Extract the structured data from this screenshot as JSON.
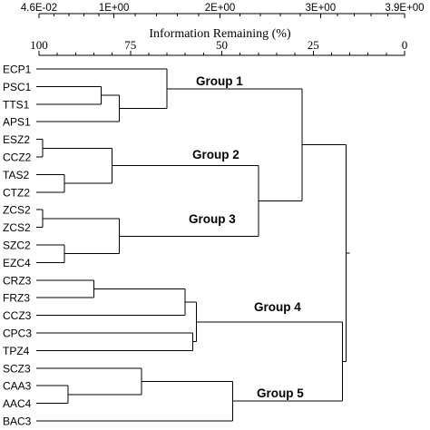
{
  "axis": {
    "top_ticks": [
      "4.6E-02",
      "1E+00",
      "2E+00",
      "3E+00",
      "3.9E+00"
    ],
    "title": "Information Remaining (%)",
    "bottom_ticks": [
      100,
      75,
      50,
      25,
      0
    ]
  },
  "leaves": [
    "ECP1",
    "PSC1",
    "TTS1",
    "APS1",
    "ESZ2",
    "CCZ2",
    "TAS2",
    "CTZ2",
    "ZCS2",
    "ZCS2",
    "SZC2",
    "EZC4",
    "CRZ3",
    "FRZ3",
    "CCZ3",
    "CPC3",
    "TPZ4",
    "SCZ3",
    "CAA3",
    "AAC4",
    "BAC3"
  ],
  "groups": [
    "Group 1",
    "Group 2",
    "Group 3",
    "Group 4",
    "Group 5"
  ],
  "chart_data": {
    "type": "dendrogram",
    "x_axis": "Information Remaining (%)",
    "x_range": [
      100,
      0
    ],
    "merges": [
      {
        "id": "m1",
        "a": "PSC1",
        "b": "TTS1",
        "height": 83
      },
      {
        "id": "m2",
        "a": "m1",
        "b": "APS1",
        "height": 78
      },
      {
        "id": "m3",
        "a": "ECP1",
        "b": "m2",
        "height": 65
      },
      {
        "id": "m4",
        "a": "ESZ2",
        "b": "CCZ2",
        "height": 99
      },
      {
        "id": "m5",
        "a": "TAS2",
        "b": "CTZ2",
        "height": 93
      },
      {
        "id": "m6",
        "a": "m4",
        "b": "m5",
        "height": 80
      },
      {
        "id": "m7",
        "a": "ZCS2",
        "b": "ZCS2",
        "height": 99
      },
      {
        "id": "m8",
        "a": "SZC2",
        "b": "EZC4",
        "height": 93
      },
      {
        "id": "m9",
        "a": "m7",
        "b": "m8",
        "height": 78
      },
      {
        "id": "m10",
        "a": "m6",
        "b": "m9",
        "height": 40
      },
      {
        "id": "m11",
        "a": "m3",
        "b": "m10",
        "height": 28
      },
      {
        "id": "m12",
        "a": "CRZ3",
        "b": "FRZ3",
        "height": 85
      },
      {
        "id": "m13",
        "a": "m12",
        "b": "CCZ3",
        "height": 60
      },
      {
        "id": "m14",
        "a": "CPC3",
        "b": "TPZ4",
        "height": 58
      },
      {
        "id": "m15",
        "a": "m13",
        "b": "m14",
        "height": 57
      },
      {
        "id": "m16",
        "a": "CAA3",
        "b": "AAC4",
        "height": 92
      },
      {
        "id": "m17",
        "a": "SCZ3",
        "b": "m16",
        "height": 72
      },
      {
        "id": "m18",
        "a": "m17",
        "b": "BAC3",
        "height": 47
      },
      {
        "id": "m19",
        "a": "m15",
        "b": "m18",
        "height": 17
      },
      {
        "id": "m20",
        "a": "m11",
        "b": "m19",
        "height": 16
      }
    ],
    "group_labels": [
      {
        "label": "Group 1",
        "node": "m3"
      },
      {
        "label": "Group 2",
        "node": "m6"
      },
      {
        "label": "Group 3",
        "node": "m9"
      },
      {
        "label": "Group 4",
        "node": "m15"
      },
      {
        "label": "Group 5",
        "node": "m18"
      }
    ]
  }
}
